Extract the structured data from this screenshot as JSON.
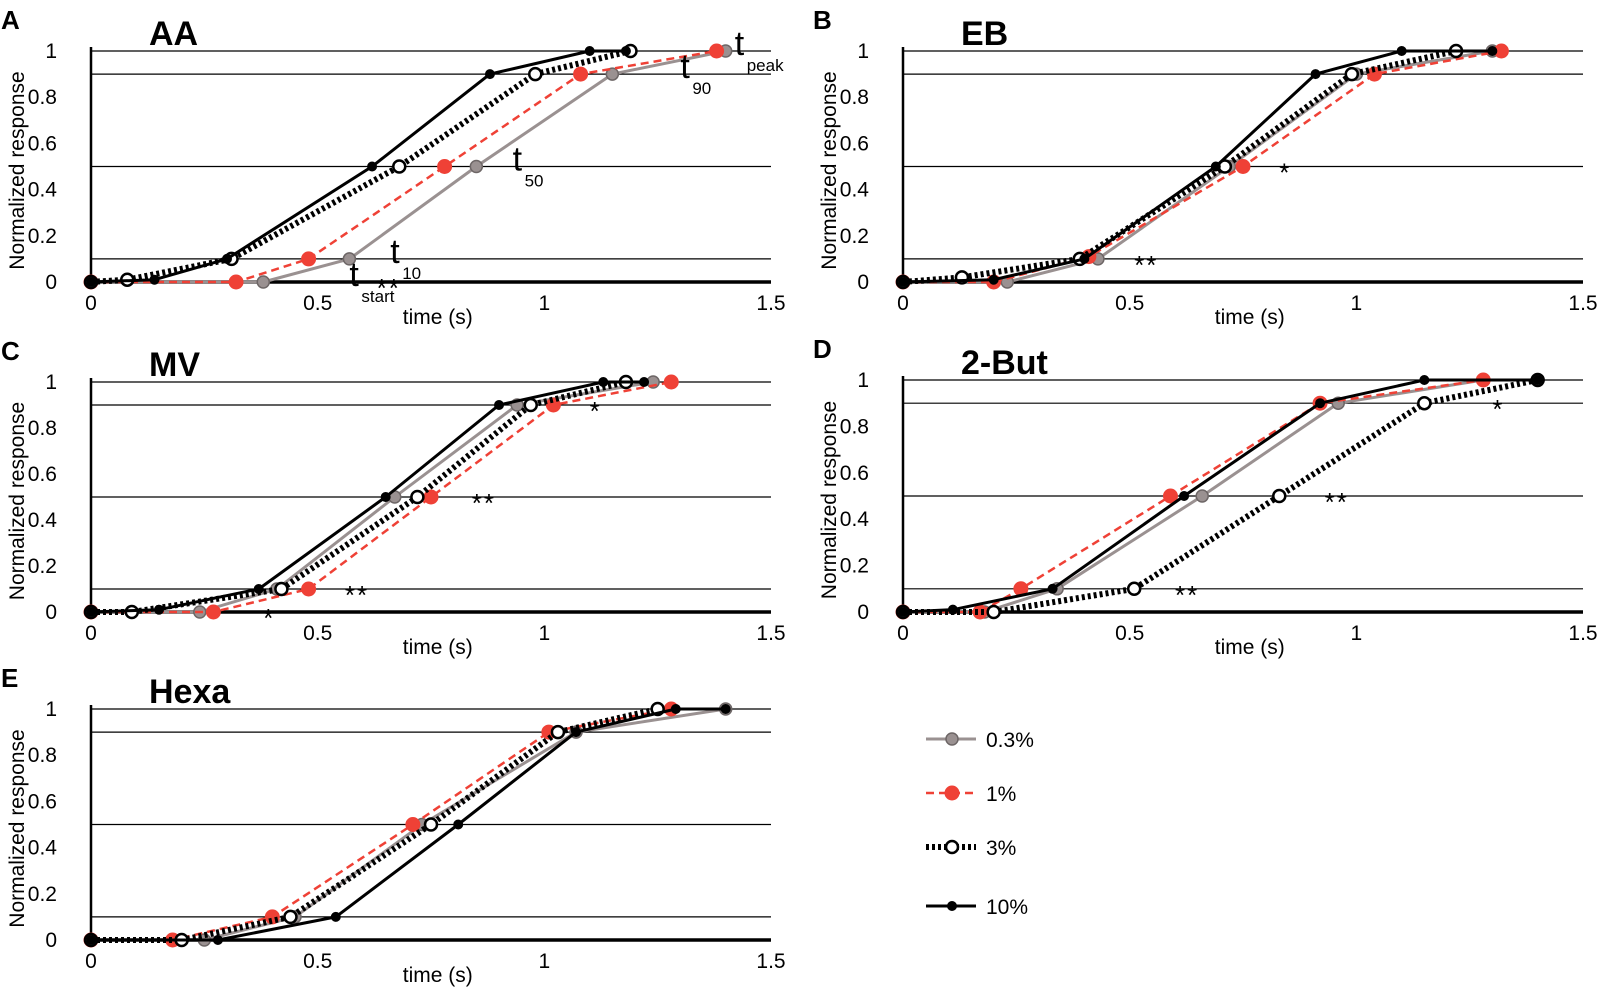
{
  "chart_data": [
    {
      "id": "A",
      "letter": "A",
      "title": "AA",
      "type": "line",
      "xlabel": "time (s)",
      "ylabel": "Normalized response",
      "xlim": [
        0,
        1.5
      ],
      "ylim": [
        0,
        1
      ],
      "xticks": [
        "0",
        "0.5",
        "1",
        "1.5"
      ],
      "yticks": [
        "0",
        "0.2",
        "0.4",
        "0.6",
        "0.8",
        "1"
      ],
      "threshold_lines": [
        0.1,
        0.5,
        0.9,
        1.0
      ],
      "series": [
        {
          "name": "0.3%",
          "x": [
            0,
            0.38,
            0.57,
            0.85,
            1.15,
            1.4
          ],
          "y": [
            0,
            0,
            0.1,
            0.5,
            0.9,
            1.0
          ]
        },
        {
          "name": "1%",
          "x": [
            0,
            0.32,
            0.48,
            0.78,
            1.08,
            1.38
          ],
          "y": [
            0,
            0,
            0.1,
            0.5,
            0.9,
            1.0
          ]
        },
        {
          "name": "3%",
          "x": [
            0,
            0.08,
            0.31,
            0.68,
            0.98,
            1.19
          ],
          "y": [
            0,
            0.01,
            0.1,
            0.5,
            0.9,
            1.0
          ]
        },
        {
          "name": "10%",
          "x": [
            0,
            0.14,
            0.3,
            0.62,
            0.88,
            1.1,
            1.18
          ],
          "y": [
            0,
            0.01,
            0.1,
            0.5,
            0.9,
            1.0,
            1.0
          ]
        }
      ],
      "annotations": [
        {
          "main": "t",
          "sub": "peak",
          "x": 1.42,
          "y": 1.0
        },
        {
          "main": "t",
          "sub": "90",
          "x": 1.3,
          "y": 0.9
        },
        {
          "main": "t",
          "sub": "50",
          "x": 0.93,
          "y": 0.5
        },
        {
          "main": "t",
          "sub": "10",
          "x": 0.66,
          "y": 0.1
        },
        {
          "main": "t",
          "sub": "start",
          "x": 0.57,
          "y": 0.0
        }
      ],
      "stars": [
        {
          "text": "**",
          "x": 0.63,
          "y": 0.0
        }
      ]
    },
    {
      "id": "B",
      "letter": "B",
      "title": "EB",
      "type": "line",
      "xlabel": "time (s)",
      "ylabel": "Normalized response",
      "xlim": [
        0,
        1.5
      ],
      "ylim": [
        0,
        1
      ],
      "xticks": [
        "0",
        "0.5",
        "1",
        "1.5"
      ],
      "yticks": [
        "0",
        "0.2",
        "0.4",
        "0.6",
        "0.8",
        "1"
      ],
      "threshold_lines": [
        0.1,
        0.5,
        0.9,
        1.0
      ],
      "series": [
        {
          "name": "0.3%",
          "x": [
            0,
            0.23,
            0.43,
            0.72,
            1.0,
            1.3
          ],
          "y": [
            0,
            0,
            0.1,
            0.5,
            0.9,
            1.0
          ]
        },
        {
          "name": "1%",
          "x": [
            0,
            0.2,
            0.41,
            0.75,
            1.04,
            1.32
          ],
          "y": [
            0,
            0,
            0.11,
            0.5,
            0.9,
            1.0
          ]
        },
        {
          "name": "3%",
          "x": [
            0,
            0.13,
            0.39,
            0.71,
            0.99,
            1.22
          ],
          "y": [
            0,
            0.02,
            0.1,
            0.5,
            0.9,
            1.0
          ]
        },
        {
          "name": "10%",
          "x": [
            0,
            0.2,
            0.4,
            0.69,
            0.91,
            1.1,
            1.3
          ],
          "y": [
            0,
            0.01,
            0.1,
            0.5,
            0.9,
            1.0,
            1.0
          ]
        }
      ],
      "annotations": [],
      "stars": [
        {
          "text": "**",
          "x": 0.51,
          "y": 0.1
        },
        {
          "text": "*",
          "x": 0.83,
          "y": 0.5
        }
      ]
    },
    {
      "id": "C",
      "letter": "C",
      "title": "MV",
      "type": "line",
      "xlabel": "time (s)",
      "ylabel": "Normalized response",
      "xlim": [
        0,
        1.5
      ],
      "ylim": [
        0,
        1
      ],
      "xticks": [
        "0",
        "0.5",
        "1",
        "1.5"
      ],
      "yticks": [
        "0",
        "0.2",
        "0.4",
        "0.6",
        "0.8",
        "1"
      ],
      "threshold_lines": [
        0.1,
        0.5,
        0.9,
        1.0
      ],
      "series": [
        {
          "name": "0.3%",
          "x": [
            0,
            0.24,
            0.41,
            0.67,
            0.94,
            1.24
          ],
          "y": [
            0,
            0,
            0.1,
            0.5,
            0.9,
            1.0
          ]
        },
        {
          "name": "1%",
          "x": [
            0,
            0.27,
            0.48,
            0.75,
            1.02,
            1.28
          ],
          "y": [
            0,
            0,
            0.1,
            0.5,
            0.9,
            1.0
          ]
        },
        {
          "name": "3%",
          "x": [
            0,
            0.09,
            0.42,
            0.72,
            0.97,
            1.18
          ],
          "y": [
            0,
            0,
            0.1,
            0.5,
            0.9,
            1.0
          ]
        },
        {
          "name": "10%",
          "x": [
            0,
            0.15,
            0.37,
            0.65,
            0.9,
            1.13,
            1.22
          ],
          "y": [
            0,
            0.01,
            0.1,
            0.5,
            0.9,
            1.0,
            1.0
          ]
        }
      ],
      "annotations": [],
      "stars": [
        {
          "text": "**",
          "x": 0.56,
          "y": 0.1
        },
        {
          "text": "**",
          "x": 0.84,
          "y": 0.5
        },
        {
          "text": "*",
          "x": 1.1,
          "y": 0.9
        },
        {
          "text": "*",
          "x": 0.38,
          "y": 0.0
        }
      ]
    },
    {
      "id": "D",
      "letter": "D",
      "title": "2-But",
      "type": "line",
      "xlabel": "time (s)",
      "ylabel": "Normalized response",
      "xlim": [
        0,
        1.5
      ],
      "ylim": [
        0,
        1
      ],
      "xticks": [
        "0",
        "0.5",
        "1",
        "1.5"
      ],
      "yticks": [
        "0",
        "0.2",
        "0.4",
        "0.6",
        "0.8",
        "1"
      ],
      "threshold_lines": [
        0.1,
        0.5,
        0.9,
        1.0
      ],
      "series": [
        {
          "name": "0.3%",
          "x": [
            0,
            0.18,
            0.34,
            0.66,
            0.96,
            1.28
          ],
          "y": [
            0,
            0,
            0.1,
            0.5,
            0.9,
            1.0
          ]
        },
        {
          "name": "1%",
          "x": [
            0,
            0.17,
            0.26,
            0.59,
            0.92,
            1.28
          ],
          "y": [
            0,
            0,
            0.1,
            0.5,
            0.9,
            1.0
          ]
        },
        {
          "name": "3%",
          "x": [
            0,
            0.2,
            0.51,
            0.83,
            1.15,
            1.4
          ],
          "y": [
            0,
            0,
            0.1,
            0.5,
            0.9,
            1.0
          ]
        },
        {
          "name": "10%",
          "x": [
            0,
            0.11,
            0.33,
            0.62,
            0.92,
            1.15,
            1.4
          ],
          "y": [
            0,
            0.01,
            0.1,
            0.5,
            0.9,
            1.0,
            1.0
          ]
        }
      ],
      "annotations": [],
      "stars": [
        {
          "text": "**",
          "x": 0.6,
          "y": 0.1
        },
        {
          "text": "**",
          "x": 0.93,
          "y": 0.5
        },
        {
          "text": "*",
          "x": 1.3,
          "y": 0.9
        }
      ]
    },
    {
      "id": "E",
      "letter": "E",
      "title": "Hexa",
      "type": "line",
      "xlabel": "time (s)",
      "ylabel": "Normalized response",
      "xlim": [
        0,
        1.5
      ],
      "ylim": [
        0,
        1
      ],
      "xticks": [
        "0",
        "0.5",
        "1",
        "1.5"
      ],
      "yticks": [
        "0",
        "0.2",
        "0.4",
        "0.6",
        "0.8",
        "1"
      ],
      "threshold_lines": [
        0.1,
        0.5,
        0.9,
        1.0
      ],
      "series": [
        {
          "name": "0.3%",
          "x": [
            0,
            0.25,
            0.45,
            0.73,
            1.07,
            1.4
          ],
          "y": [
            0,
            0,
            0.1,
            0.5,
            0.9,
            1.0
          ]
        },
        {
          "name": "1%",
          "x": [
            0,
            0.18,
            0.4,
            0.71,
            1.01,
            1.28
          ],
          "y": [
            0,
            0,
            0.1,
            0.5,
            0.9,
            1.0
          ]
        },
        {
          "name": "3%",
          "x": [
            0,
            0.2,
            0.44,
            0.75,
            1.03,
            1.25
          ],
          "y": [
            0,
            0,
            0.1,
            0.5,
            0.9,
            1.0
          ]
        },
        {
          "name": "10%",
          "x": [
            0,
            0.28,
            0.54,
            0.81,
            1.07,
            1.29,
            1.4
          ],
          "y": [
            0,
            0,
            0.1,
            0.5,
            0.9,
            1.0,
            1.0
          ]
        }
      ],
      "annotations": [],
      "stars": []
    }
  ],
  "legend": {
    "items": [
      {
        "label": "0.3%"
      },
      {
        "label": "1%"
      },
      {
        "label": "3%"
      },
      {
        "label": "10%"
      }
    ]
  },
  "colors": {
    "s03": "#9a9191",
    "s1": "#ef4136",
    "s3": "#000000",
    "s10": "#000000"
  }
}
